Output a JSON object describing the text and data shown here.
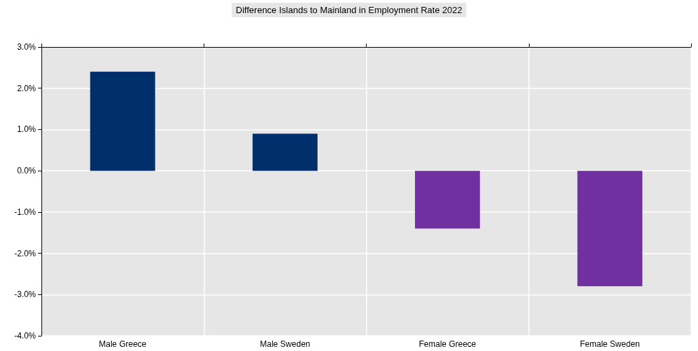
{
  "chart_data": {
    "type": "bar",
    "title": "Difference Islands to Mainland in Employment Rate 2022",
    "categories": [
      "Male Greece",
      "Male Sweden",
      "Female Greece",
      "Female Sweden"
    ],
    "values": [
      2.4,
      0.9,
      -1.4,
      -2.8
    ],
    "colors": [
      "#002f6c",
      "#002f6c",
      "#7030a0",
      "#7030a0"
    ],
    "ylim": [
      -4,
      3
    ],
    "yticks": [
      {
        "value": -4,
        "label": "-4.0%"
      },
      {
        "value": -3,
        "label": "-3.0%"
      },
      {
        "value": -2,
        "label": "-2.0%"
      },
      {
        "value": -1,
        "label": "-1.0%"
      },
      {
        "value": 0,
        "label": "0.0%"
      },
      {
        "value": 1,
        "label": "1.0%"
      },
      {
        "value": 2,
        "label": "2.0%"
      },
      {
        "value": 3,
        "label": "3.0%"
      }
    ],
    "grid": true
  }
}
